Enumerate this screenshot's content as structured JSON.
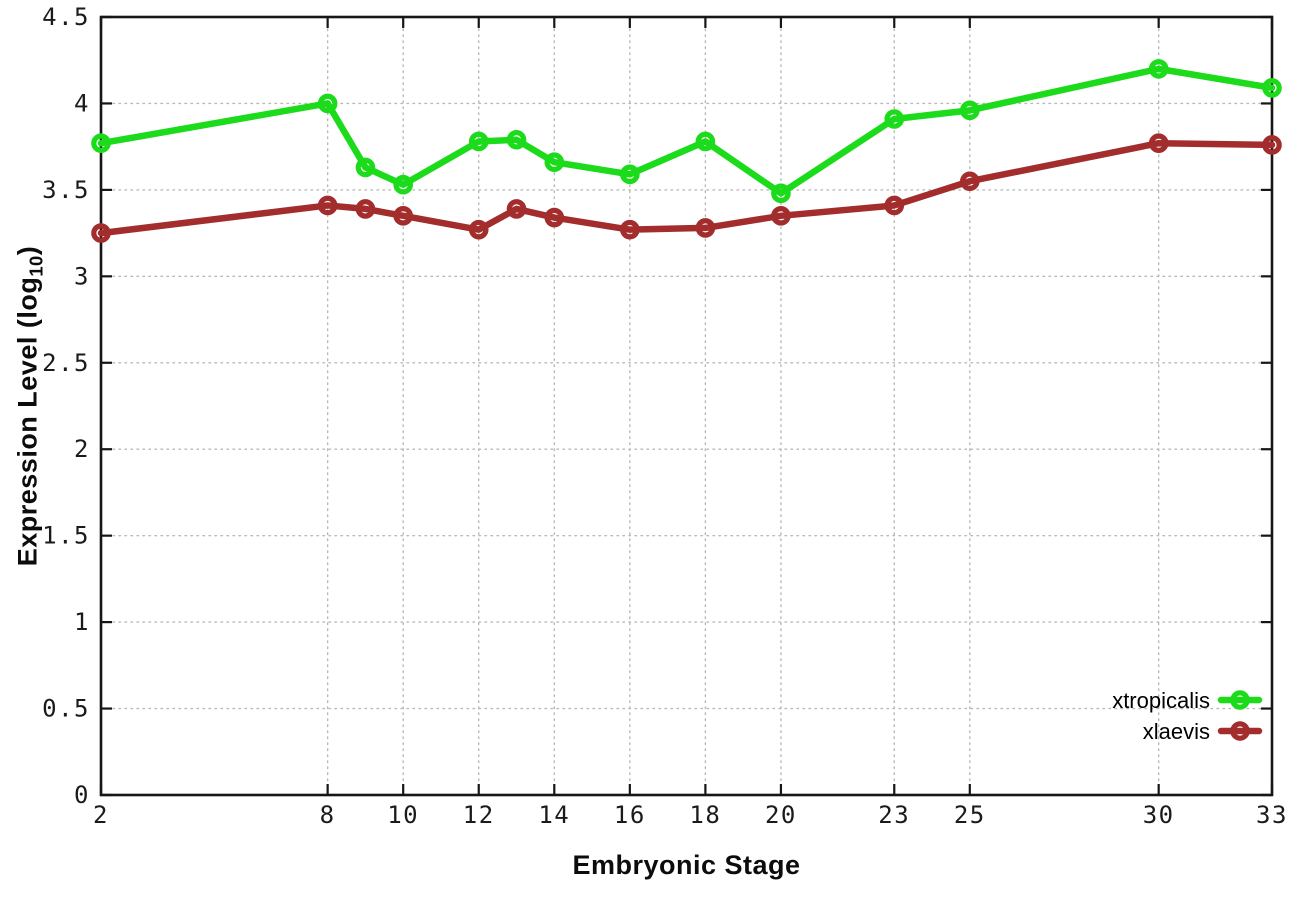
{
  "chart_data": {
    "type": "line",
    "title": "",
    "xlabel": "Embryonic Stage",
    "ylabel": "Expression Level (log10)",
    "ylabel_parts": {
      "pre": "Expression Level (log",
      "sub": "10",
      "post": ")"
    },
    "x": [
      2,
      8,
      9,
      10,
      12,
      13,
      14,
      16,
      18,
      20,
      23,
      25,
      30,
      33
    ],
    "series": [
      {
        "name": "xtropicalis",
        "color": "#1bdb1b",
        "values": [
          3.77,
          4.0,
          3.63,
          3.53,
          3.78,
          3.79,
          3.66,
          3.59,
          3.78,
          3.48,
          3.91,
          3.96,
          4.2,
          4.09
        ]
      },
      {
        "name": "xlaevis",
        "color": "#a32c2c",
        "values": [
          3.25,
          3.41,
          3.39,
          3.35,
          3.27,
          3.39,
          3.34,
          3.27,
          3.28,
          3.35,
          3.41,
          3.55,
          3.77,
          3.76
        ]
      }
    ],
    "xlim": [
      2,
      33
    ],
    "ylim": [
      0,
      4.5
    ],
    "x_ticks": [
      2,
      8,
      10,
      12,
      14,
      16,
      18,
      20,
      23,
      25,
      30,
      33
    ],
    "x_tick_labels": [
      "2",
      "8",
      "10",
      "12",
      "14",
      "16",
      "18",
      "20",
      "23",
      "25",
      "30",
      "33"
    ],
    "y_ticks": [
      0,
      0.5,
      1,
      1.5,
      2,
      2.5,
      3,
      3.5,
      4,
      4.5
    ],
    "y_tick_labels": [
      "0",
      "0.5",
      "1",
      "1.5",
      "2",
      "2.5",
      "3",
      "3.5",
      "4",
      "4.5"
    ],
    "grid": true,
    "legend_position": "bottom-right",
    "marker": "open-circle"
  },
  "colors": {
    "background": "#ffffff",
    "axis": "#161616",
    "grid": "#b8b8b8",
    "tick_text": "#1a1a1a",
    "series_xtropicalis": "#1bdb1b",
    "series_xlaevis": "#a32c2c"
  }
}
